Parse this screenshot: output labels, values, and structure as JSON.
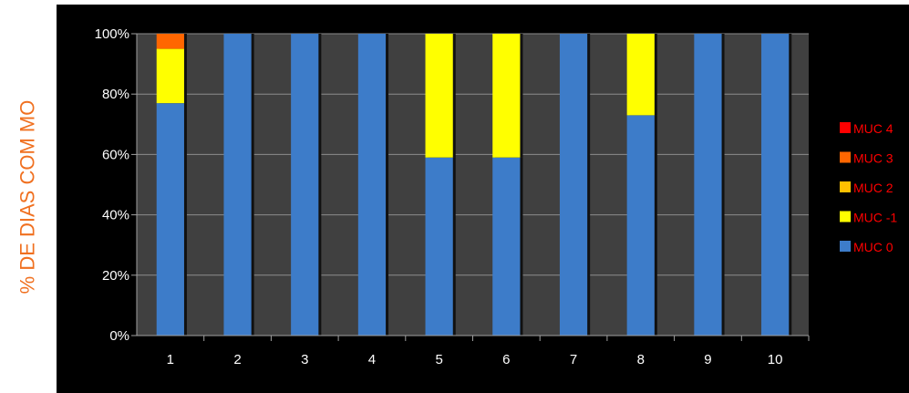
{
  "chart_data": {
    "type": "bar",
    "stacked": true,
    "title": "",
    "xlabel": "",
    "ylabel": "% DE DIAS COM MO",
    "categories": [
      "1",
      "2",
      "3",
      "4",
      "5",
      "6",
      "7",
      "8",
      "9",
      "10"
    ],
    "yticks": [
      "0%",
      "20%",
      "40%",
      "60%",
      "80%",
      "100%"
    ],
    "ylim": [
      0,
      100
    ],
    "grid": true,
    "legend_position": "right",
    "series": [
      {
        "name": "MUC 0",
        "color": "#3D7CC9",
        "values": [
          77,
          100,
          100,
          100,
          59,
          59,
          100,
          73,
          100,
          100
        ]
      },
      {
        "name": "MUC -1",
        "color": "#FFFF00",
        "values": [
          18,
          0,
          0,
          0,
          41,
          41,
          0,
          27,
          0,
          0
        ]
      },
      {
        "name": "MUC 2",
        "color": "#FFC000",
        "values": [
          0,
          0,
          0,
          0,
          0,
          0,
          0,
          0,
          0,
          0
        ]
      },
      {
        "name": "MUC 3",
        "color": "#FF6600",
        "values": [
          5,
          0,
          0,
          0,
          0,
          0,
          0,
          0,
          0,
          0
        ]
      },
      {
        "name": "MUC 4",
        "color": "#FF0000",
        "values": [
          0,
          0,
          0,
          0,
          0,
          0,
          0,
          0,
          0,
          0
        ]
      }
    ],
    "legend_order": [
      "MUC 4",
      "MUC 3",
      "MUC 2",
      "MUC -1",
      "MUC 0"
    ]
  }
}
